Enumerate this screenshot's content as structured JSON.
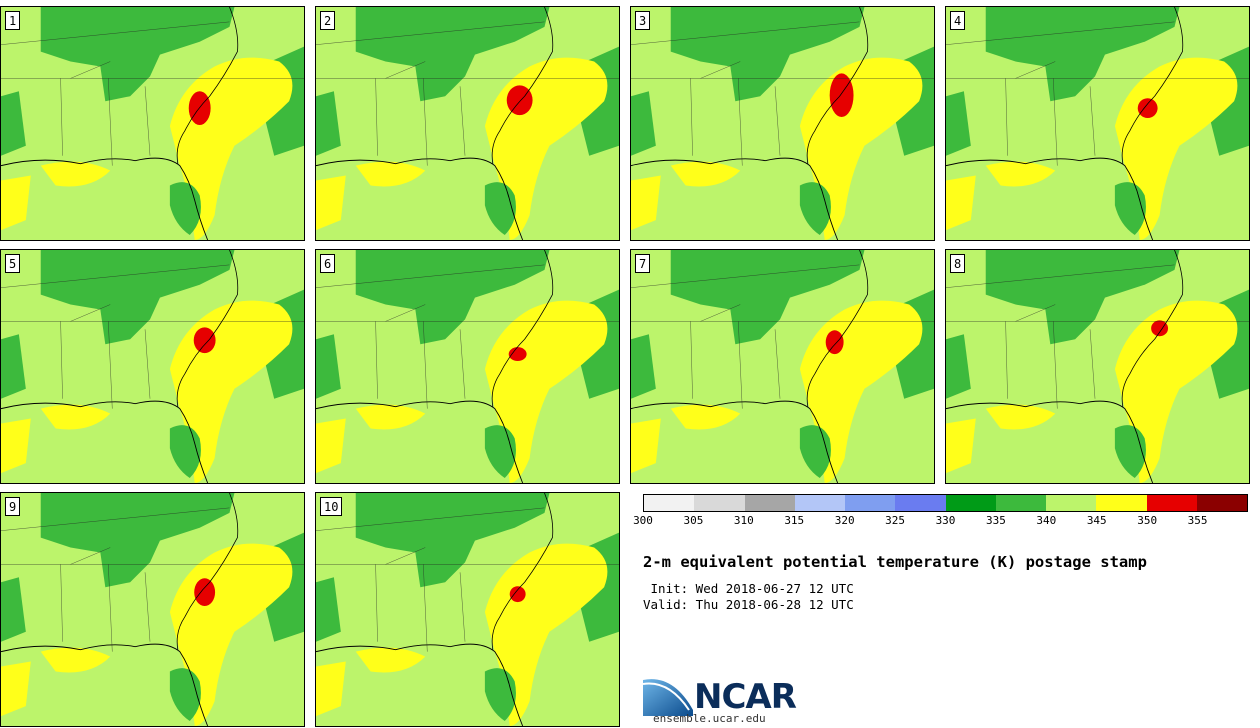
{
  "members": [
    "1",
    "2",
    "3",
    "4",
    "5",
    "6",
    "7",
    "8",
    "9",
    "10"
  ],
  "colorbar": {
    "colors": [
      "#f2f2f2",
      "#d9d9d9",
      "#a6a6a6",
      "#b3c6f7",
      "#7f9ef0",
      "#6a7cf0",
      "#009b17",
      "#3dba3d",
      "#bcf46b",
      "#ffff1a",
      "#e60000",
      "#8b0000"
    ],
    "tick_labels": [
      "300",
      "305",
      "310",
      "315",
      "320",
      "325",
      "330",
      "335",
      "340",
      "345",
      "350",
      "355"
    ]
  },
  "title": "2-m equivalent potential temperature (K) postage stamp",
  "init_text": " Init: Wed 2018-06-27 12 UTC",
  "valid_text": "Valid: Thu 2018-06-28 12 UTC",
  "logo_text": "NCAR",
  "url": "ensemble.ucar.edu"
}
